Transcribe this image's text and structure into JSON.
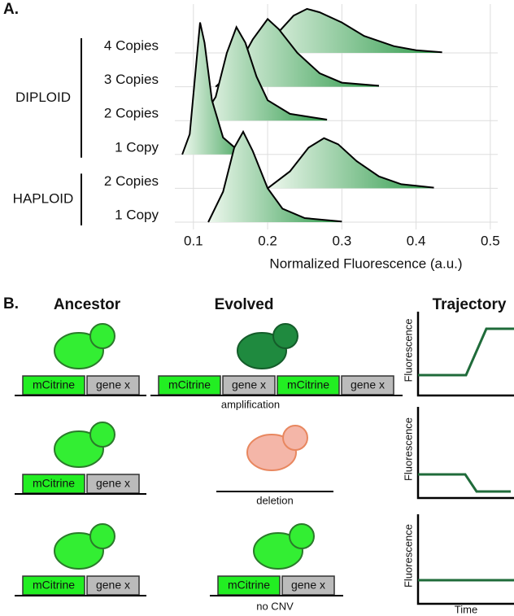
{
  "panel_labels": [
    "A.",
    "B."
  ],
  "chart_data": {
    "type": "ridgeline",
    "x_label": "Normalized Fluorescence (a.u.)",
    "xlim": [
      0.075,
      0.51
    ],
    "xticks": [
      0.1,
      0.2,
      0.3,
      0.4,
      0.5
    ],
    "grid": true,
    "groups": [
      "DIPLOID",
      "HAPLOID"
    ],
    "series": [
      {
        "name": "4 Copies",
        "group": 0,
        "color": "#2e9a4a",
        "x": [
          0.175,
          0.21,
          0.235,
          0.253,
          0.27,
          0.3,
          0.33,
          0.37,
          0.4,
          0.435
        ],
        "values": [
          0,
          0.5,
          1.1,
          1.3,
          1.2,
          0.9,
          0.5,
          0.2,
          0.08,
          0.02
        ]
      },
      {
        "name": "3 Copies",
        "group": 0,
        "color": "#2e9a4a",
        "x": [
          0.13,
          0.16,
          0.18,
          0.2,
          0.215,
          0.24,
          0.27,
          0.3,
          0.35
        ],
        "values": [
          0,
          0.6,
          1.4,
          2.0,
          1.7,
          1.0,
          0.4,
          0.12,
          0.03
        ]
      },
      {
        "name": "2 Copies",
        "group": 0,
        "color": "#2e9a4a",
        "x": [
          0.11,
          0.13,
          0.145,
          0.158,
          0.17,
          0.185,
          0.2,
          0.23,
          0.28
        ],
        "values": [
          0,
          0.7,
          2.0,
          2.76,
          2.3,
          1.3,
          0.6,
          0.2,
          0.03
        ]
      },
      {
        "name": "1 Copy",
        "group": 0,
        "color": "#2e9a4a",
        "x": [
          0.085,
          0.095,
          0.103,
          0.109,
          0.115,
          0.125,
          0.14,
          0.16,
          0.18
        ],
        "values": [
          0,
          0.6,
          2.5,
          3.9,
          3.3,
          1.6,
          0.5,
          0.12,
          0
        ]
      },
      {
        "name": "2 Copies",
        "group": 1,
        "color": "#2e9a4a",
        "x": [
          0.2,
          0.23,
          0.255,
          0.276,
          0.295,
          0.32,
          0.35,
          0.38,
          0.424
        ],
        "values": [
          0,
          0.5,
          1.2,
          1.48,
          1.3,
          0.8,
          0.35,
          0.12,
          0.02
        ]
      },
      {
        "name": "1 Copy",
        "group": 1,
        "color": "#2e9a4a",
        "x": [
          0.12,
          0.14,
          0.155,
          0.167,
          0.18,
          0.2,
          0.22,
          0.25,
          0.3
        ],
        "values": [
          0,
          0.9,
          2.2,
          2.67,
          2.1,
          1.0,
          0.4,
          0.12,
          0.02
        ]
      }
    ]
  },
  "panel_b": {
    "headers": [
      "Ancestor",
      "Evolved",
      "Trajectory"
    ],
    "rows": [
      {
        "ancestor": [
          "mCitrine",
          "gene x"
        ],
        "evolved": [
          "mCitrine",
          "gene x",
          "mCitrine",
          "gene x"
        ],
        "caption": "amplification",
        "y_label": "Fluorescence"
      },
      {
        "ancestor": [
          "mCitrine",
          "gene x"
        ],
        "caption": "deletion",
        "y_label": "Fluorescence"
      },
      {
        "ancestor": [
          "mCitrine",
          "gene x"
        ],
        "evolved": [
          "mCitrine",
          "gene x"
        ],
        "caption": "no CNV",
        "y_label": "Fluorescence"
      }
    ],
    "x_label": "Time"
  }
}
